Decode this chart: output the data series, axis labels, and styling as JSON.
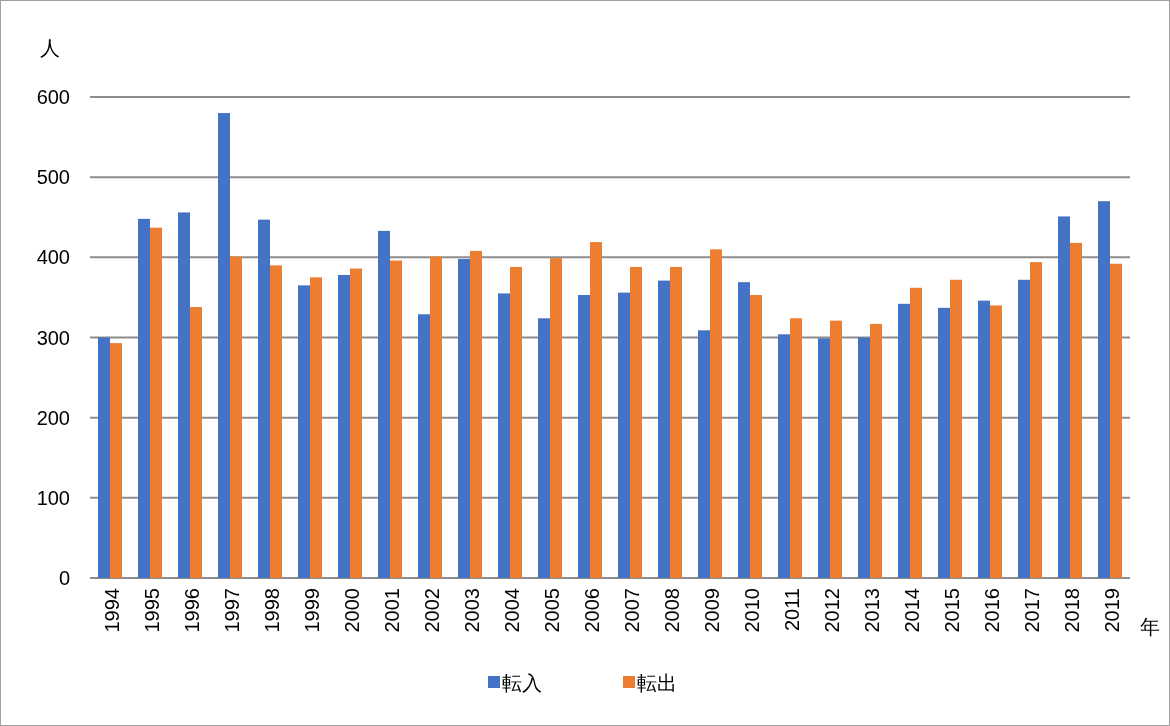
{
  "chart_data": {
    "type": "bar",
    "xlabel": "年",
    "ylabel": "人",
    "categories": [
      "1994",
      "1995",
      "1996",
      "1997",
      "1998",
      "1999",
      "2000",
      "2001",
      "2002",
      "2003",
      "2004",
      "2005",
      "2006",
      "2007",
      "2008",
      "2009",
      "2010",
      "2011",
      "2012",
      "2013",
      "2014",
      "2015",
      "2016",
      "2017",
      "2018",
      "2019"
    ],
    "series": [
      {
        "name": "転入",
        "color": "#4472c4",
        "values": [
          300,
          448,
          456,
          580,
          447,
          365,
          378,
          433,
          329,
          398,
          355,
          324,
          353,
          356,
          371,
          309,
          369,
          304,
          299,
          300,
          342,
          337,
          346,
          372,
          451,
          470
        ]
      },
      {
        "name": "転出",
        "color": "#ed7d31",
        "values": [
          293,
          437,
          338,
          401,
          390,
          375,
          386,
          396,
          401,
          408,
          388,
          399,
          419,
          388,
          388,
          410,
          353,
          324,
          321,
          317,
          362,
          372,
          340,
          394,
          418,
          392
        ]
      }
    ],
    "ylim": [
      0,
      600
    ],
    "yticks": [
      0,
      100,
      200,
      300,
      400,
      500,
      600
    ],
    "grid": "y",
    "legend": "bottom"
  }
}
